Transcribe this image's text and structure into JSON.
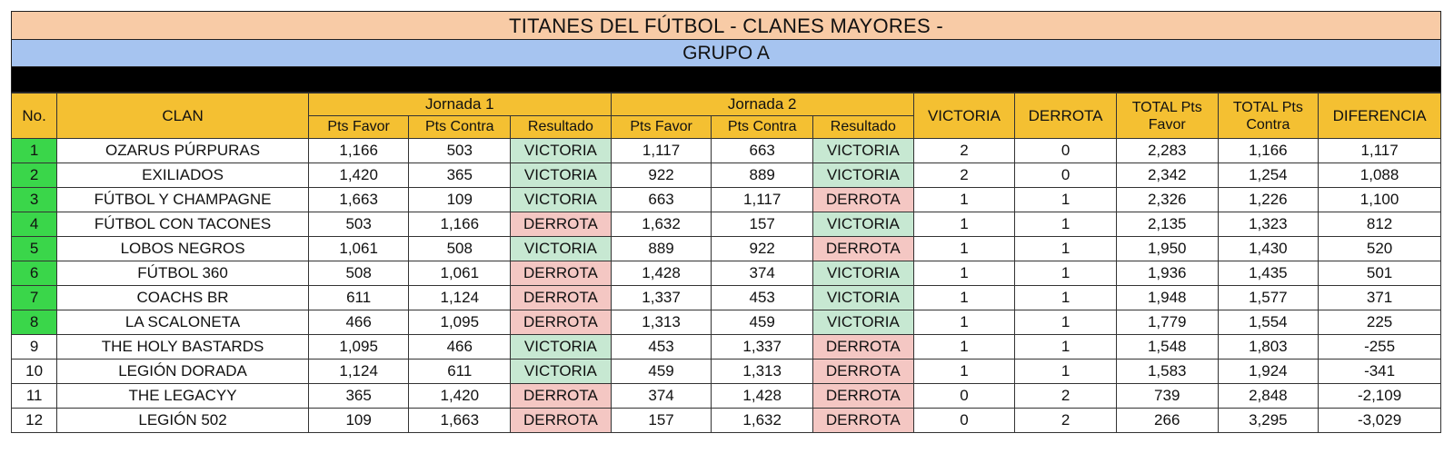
{
  "title": "TITANES DEL FÚTBOL - CLANES MAYORES -",
  "group": "GRUPO A",
  "headers": {
    "no": "No.",
    "clan": "CLAN",
    "jornada1": "Jornada 1",
    "jornada2": "Jornada 2",
    "pts_favor": "Pts Favor",
    "pts_contra": "Pts Contra",
    "resultado": "Resultado",
    "victoria": "VICTORIA",
    "derrota": "DERROTA",
    "total_favor": "TOTAL Pts Favor",
    "total_contra": "TOTAL Pts Contra",
    "diferencia": "DIFERENCIA"
  },
  "colors": {
    "title_bg": "#f8cba6",
    "group_bg": "#a6c4f0",
    "header_bg": "#f4c032",
    "qualified_no_bg": "#3ad64a",
    "victoria_bg": "#c7e8d2",
    "derrota_bg": "#f4c7c3"
  },
  "rows": [
    {
      "no": "1",
      "clan": "OZARUS PÚRPURAS",
      "j1_favor": "1,166",
      "j1_contra": "503",
      "j1_res": "VICTORIA",
      "j2_favor": "1,117",
      "j2_contra": "663",
      "j2_res": "VICTORIA",
      "victoria": "2",
      "derrota": "0",
      "total_favor": "2,283",
      "total_contra": "1,166",
      "diferencia": "1,117",
      "qualified": true
    },
    {
      "no": "2",
      "clan": "EXILIADOS",
      "j1_favor": "1,420",
      "j1_contra": "365",
      "j1_res": "VICTORIA",
      "j2_favor": "922",
      "j2_contra": "889",
      "j2_res": "VICTORIA",
      "victoria": "2",
      "derrota": "0",
      "total_favor": "2,342",
      "total_contra": "1,254",
      "diferencia": "1,088",
      "qualified": true
    },
    {
      "no": "3",
      "clan": "FÚTBOL Y CHAMPAGNE",
      "j1_favor": "1,663",
      "j1_contra": "109",
      "j1_res": "VICTORIA",
      "j2_favor": "663",
      "j2_contra": "1,117",
      "j2_res": "DERROTA",
      "victoria": "1",
      "derrota": "1",
      "total_favor": "2,326",
      "total_contra": "1,226",
      "diferencia": "1,100",
      "qualified": true
    },
    {
      "no": "4",
      "clan": "FÚTBOL CON TACONES",
      "j1_favor": "503",
      "j1_contra": "1,166",
      "j1_res": "DERROTA",
      "j2_favor": "1,632",
      "j2_contra": "157",
      "j2_res": "VICTORIA",
      "victoria": "1",
      "derrota": "1",
      "total_favor": "2,135",
      "total_contra": "1,323",
      "diferencia": "812",
      "qualified": true
    },
    {
      "no": "5",
      "clan": "LOBOS NEGROS",
      "j1_favor": "1,061",
      "j1_contra": "508",
      "j1_res": "VICTORIA",
      "j2_favor": "889",
      "j2_contra": "922",
      "j2_res": "DERROTA",
      "victoria": "1",
      "derrota": "1",
      "total_favor": "1,950",
      "total_contra": "1,430",
      "diferencia": "520",
      "qualified": true
    },
    {
      "no": "6",
      "clan": "FÚTBOL 360",
      "j1_favor": "508",
      "j1_contra": "1,061",
      "j1_res": "DERROTA",
      "j2_favor": "1,428",
      "j2_contra": "374",
      "j2_res": "VICTORIA",
      "victoria": "1",
      "derrota": "1",
      "total_favor": "1,936",
      "total_contra": "1,435",
      "diferencia": "501",
      "qualified": true
    },
    {
      "no": "7",
      "clan": "COACHS BR",
      "j1_favor": "611",
      "j1_contra": "1,124",
      "j1_res": "DERROTA",
      "j2_favor": "1,337",
      "j2_contra": "453",
      "j2_res": "VICTORIA",
      "victoria": "1",
      "derrota": "1",
      "total_favor": "1,948",
      "total_contra": "1,577",
      "diferencia": "371",
      "qualified": true
    },
    {
      "no": "8",
      "clan": "LA SCALONETA",
      "j1_favor": "466",
      "j1_contra": "1,095",
      "j1_res": "DERROTA",
      "j2_favor": "1,313",
      "j2_contra": "459",
      "j2_res": "VICTORIA",
      "victoria": "1",
      "derrota": "1",
      "total_favor": "1,779",
      "total_contra": "1,554",
      "diferencia": "225",
      "qualified": true
    },
    {
      "no": "9",
      "clan": "THE HOLY BASTARDS",
      "j1_favor": "1,095",
      "j1_contra": "466",
      "j1_res": "VICTORIA",
      "j2_favor": "453",
      "j2_contra": "1,337",
      "j2_res": "DERROTA",
      "victoria": "1",
      "derrota": "1",
      "total_favor": "1,548",
      "total_contra": "1,803",
      "diferencia": "-255",
      "qualified": false
    },
    {
      "no": "10",
      "clan": "LEGIÓN DORADA",
      "j1_favor": "1,124",
      "j1_contra": "611",
      "j1_res": "VICTORIA",
      "j2_favor": "459",
      "j2_contra": "1,313",
      "j2_res": "DERROTA",
      "victoria": "1",
      "derrota": "1",
      "total_favor": "1,583",
      "total_contra": "1,924",
      "diferencia": "-341",
      "qualified": false
    },
    {
      "no": "11",
      "clan": "THE LEGACYY",
      "j1_favor": "365",
      "j1_contra": "1,420",
      "j1_res": "DERROTA",
      "j2_favor": "374",
      "j2_contra": "1,428",
      "j2_res": "DERROTA",
      "victoria": "0",
      "derrota": "2",
      "total_favor": "739",
      "total_contra": "2,848",
      "diferencia": "-2,109",
      "qualified": false
    },
    {
      "no": "12",
      "clan": "LEGIÓN 502",
      "j1_favor": "109",
      "j1_contra": "1,663",
      "j1_res": "DERROTA",
      "j2_favor": "157",
      "j2_contra": "1,632",
      "j2_res": "DERROTA",
      "victoria": "0",
      "derrota": "2",
      "total_favor": "266",
      "total_contra": "3,295",
      "diferencia": "-3,029",
      "qualified": false
    }
  ]
}
